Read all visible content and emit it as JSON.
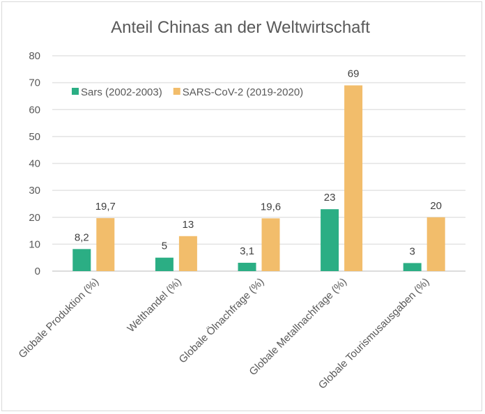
{
  "chart_data": {
    "type": "bar",
    "title": "Anteil Chinas an der Weltwirtschaft",
    "xlabel": "",
    "ylabel": "",
    "ylim": [
      0,
      80
    ],
    "yticks": [
      0,
      10,
      20,
      30,
      40,
      50,
      60,
      70,
      80
    ],
    "grid": true,
    "legend_position": "top-left",
    "categories": [
      "Globale Produktion (%)",
      "Welthandel (%)",
      "Globale Ölnachfrage (%)",
      "Globale Metallnachfrage (%)",
      "Globale Tourismusausgaben (%)"
    ],
    "series": [
      {
        "name": "Sars (2002-2003)",
        "color": "#2bae84",
        "values": [
          8.2,
          5,
          3.1,
          23,
          3
        ],
        "labels": [
          "8,2",
          "5",
          "3,1",
          "23",
          "3"
        ]
      },
      {
        "name": "SARS-CoV-2 (2019-2020)",
        "color": "#f2bd6b",
        "values": [
          19.7,
          13,
          19.6,
          69,
          20
        ],
        "labels": [
          "19,7",
          "13",
          "19,6",
          "69",
          "20"
        ]
      }
    ]
  }
}
